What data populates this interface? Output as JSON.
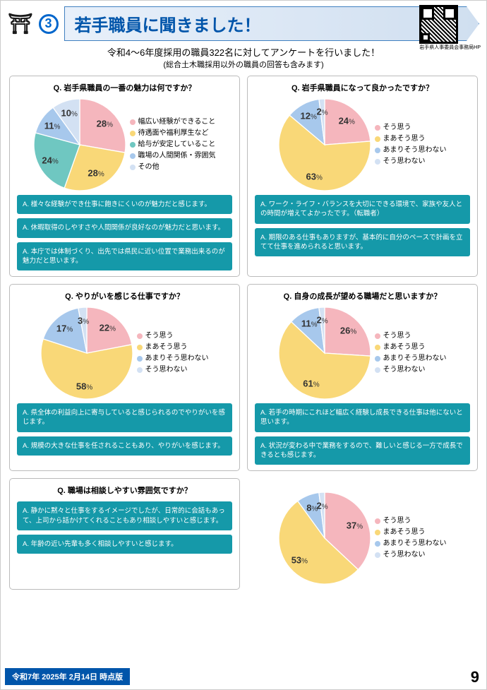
{
  "header": {
    "number": "3",
    "title": "若手職員に聞きました！",
    "subtitle_line1": "令和4～6年度採用の職員322名に対してアンケートを行いました！",
    "subtitle_line2": "(総合土木職採用以外の職員の回答も含みます)",
    "qr_caption": "岩手県人事委員会事務局HP"
  },
  "colors": {
    "pink": "#f5b6bd",
    "yellow": "#f9d878",
    "teal": "#6fc7c1",
    "blue": "#a7c8ec",
    "lightblue": "#d3e1f3",
    "comment_bg": "#1599a9"
  },
  "legends": {
    "five": [
      {
        "label": "幅広い経験ができること",
        "color": "#f5b6bd"
      },
      {
        "label": "待遇面や福利厚生など",
        "color": "#f9d878"
      },
      {
        "label": "給与が安定していること",
        "color": "#6fc7c1"
      },
      {
        "label": "職場の人間関係・雰囲気",
        "color": "#a7c8ec"
      },
      {
        "label": "その他",
        "color": "#d3e1f3"
      }
    ],
    "four": [
      {
        "label": "そう思う",
        "color": "#f5b6bd"
      },
      {
        "label": "まあそう思う",
        "color": "#f9d878"
      },
      {
        "label": "あまりそう思わない",
        "color": "#a7c8ec"
      },
      {
        "label": "そう思わない",
        "color": "#d3e1f3"
      }
    ]
  },
  "panels": [
    {
      "id": "p1",
      "question": "Q. 岩手県職員の一番の魅力は何ですか？",
      "legend": "five",
      "slices": [
        {
          "pct": 28,
          "color": "#f5b6bd"
        },
        {
          "pct": 28,
          "color": "#f9d878"
        },
        {
          "pct": 24,
          "color": "#6fc7c1"
        },
        {
          "pct": 11,
          "color": "#a7c8ec"
        },
        {
          "pct": 10,
          "color": "#d3e1f3"
        }
      ],
      "comments": [
        "A. 様々な経験ができ仕事に飽きにくいのが魅力だと感じます。",
        "A. 休暇取得のしやすさや人間関係が良好なのが魅力だと思います。",
        "A. 本庁では体制づくり、出先では県民に近い位置で業務出来るのが魅力だと思います。"
      ]
    },
    {
      "id": "p2",
      "question": "Q. 岩手県職員になって良かったですか？",
      "legend": "four",
      "slices": [
        {
          "pct": 24,
          "color": "#f5b6bd"
        },
        {
          "pct": 63,
          "color": "#f9d878"
        },
        {
          "pct": 12,
          "color": "#a7c8ec"
        },
        {
          "pct": 2,
          "color": "#d3e1f3"
        }
      ],
      "comments": [
        "A. ワーク・ライフ・バランスを大切にできる環境で、家族や友人との時間が増えてよかったです。（転職者）",
        "A. 期限のある仕事もありますが、基本的に自分のペースで計画を立てて仕事を進められると思います。"
      ]
    },
    {
      "id": "p3",
      "question": "Q. やりがいを感じる仕事ですか？",
      "legend": "four",
      "slices": [
        {
          "pct": 22,
          "color": "#f5b6bd"
        },
        {
          "pct": 58,
          "color": "#f9d878"
        },
        {
          "pct": 17,
          "color": "#a7c8ec"
        },
        {
          "pct": 3,
          "color": "#d3e1f3"
        }
      ],
      "comments": [
        "A. 県全体の利益向上に寄与していると感じられるのでやりがいを感じます。",
        "A. 規模の大きな仕事を任されることもあり、やりがいを感じます。"
      ]
    },
    {
      "id": "p4",
      "question": "Q. 自身の成長が望める職場だと思いますか？",
      "legend": "four",
      "slices": [
        {
          "pct": 26,
          "color": "#f5b6bd"
        },
        {
          "pct": 61,
          "color": "#f9d878"
        },
        {
          "pct": 11,
          "color": "#a7c8ec"
        },
        {
          "pct": 2,
          "color": "#d3e1f3"
        }
      ],
      "comments": [
        "A. 若手の時期にこれほど幅広く経験し成長できる仕事は他にないと思います。",
        "A. 状況が変わる中で業務をするので、難しいと感じる一方で成長できるとも感じます。"
      ]
    },
    {
      "id": "p5",
      "question": "Q. 職場は相談しやすい雰囲気ですか？",
      "legend": "four",
      "slices": [
        {
          "pct": 37,
          "color": "#f5b6bd"
        },
        {
          "pct": 53,
          "color": "#f9d878"
        },
        {
          "pct": 8,
          "color": "#a7c8ec"
        },
        {
          "pct": 2,
          "color": "#d3e1f3"
        }
      ],
      "comments": [
        "A. 静かに黙々と仕事をするイメージでしたが、日常的に会話もあって、上司から話かけてくれることもあり相談しやすいと感じます。",
        "A. 年齢の近い先輩も多く相談しやすいと感じます。"
      ]
    }
  ],
  "footer": {
    "date_label": "令和7年 2025年 2月14日 時点版",
    "page": "9"
  }
}
